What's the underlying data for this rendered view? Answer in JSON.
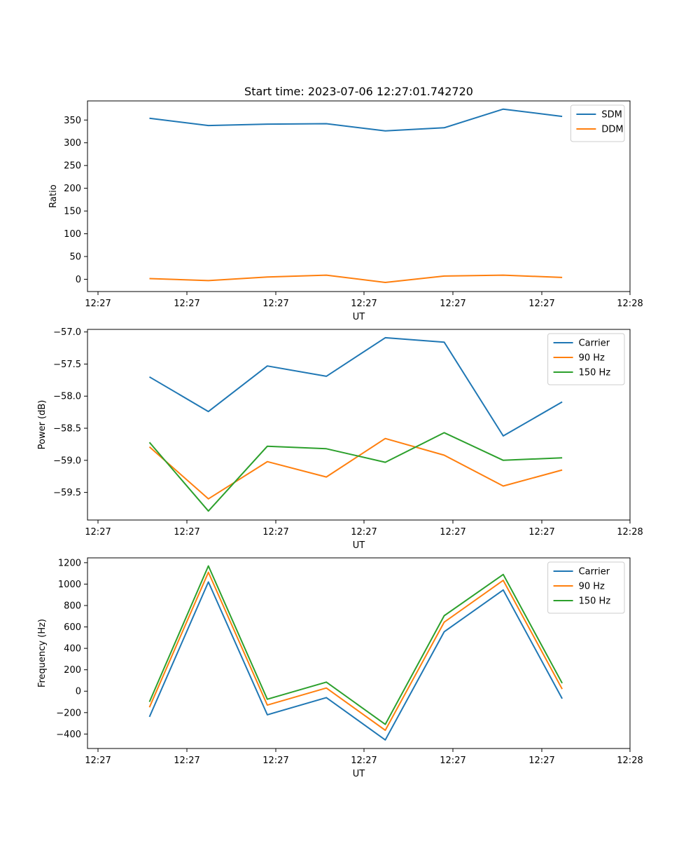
{
  "colors": {
    "blue": "#1f77b4",
    "orange": "#ff7f0e",
    "green": "#2ca02c"
  },
  "chart_data": [
    {
      "type": "line",
      "title": "Start time: 2023-07-06 12:27:01.742720",
      "xlabel": "UT",
      "ylabel": "Ratio",
      "x_tick_labels": [
        "12:27",
        "12:27",
        "12:27",
        "12:27",
        "12:27",
        "12:27",
        "12:28"
      ],
      "xlim": [
        -1.05,
        8.15
      ],
      "x": [
        0,
        1,
        2,
        3,
        4,
        5,
        6,
        7
      ],
      "ylim": [
        -27,
        392
      ],
      "yticks": [
        0,
        50,
        100,
        150,
        200,
        250,
        300,
        350
      ],
      "ytick_labels": [
        "0",
        "50",
        "100",
        "150",
        "200",
        "250",
        "300",
        "350"
      ],
      "legend": "top-right",
      "series": [
        {
          "name": "SDM",
          "color": "blue",
          "values": [
            354,
            338,
            341,
            342,
            326,
            333,
            374,
            358
          ]
        },
        {
          "name": "DDM",
          "color": "orange",
          "values": [
            1.5,
            -3,
            5,
            9,
            -7,
            7,
            9,
            4
          ]
        }
      ]
    },
    {
      "type": "line",
      "title": "",
      "xlabel": "UT",
      "ylabel": "Power (dB)",
      "x_tick_labels": [
        "12:27",
        "12:27",
        "12:27",
        "12:27",
        "12:27",
        "12:27",
        "12:28"
      ],
      "xlim": [
        -1.05,
        8.15
      ],
      "x": [
        0,
        1,
        2,
        3,
        4,
        5,
        6,
        7
      ],
      "ylim": [
        -59.93,
        -56.96
      ],
      "yticks": [
        -59.5,
        -59.0,
        -58.5,
        -58.0,
        -57.5,
        -57.0
      ],
      "ytick_labels": [
        "−59.5",
        "−59.0",
        "−58.5",
        "−58.0",
        "−57.5",
        "−57.0"
      ],
      "legend": "top-right",
      "series": [
        {
          "name": "Carrier",
          "color": "blue",
          "values": [
            -57.7,
            -58.24,
            -57.53,
            -57.69,
            -57.09,
            -57.16,
            -58.62,
            -58.09
          ]
        },
        {
          "name": "90 Hz",
          "color": "orange",
          "values": [
            -58.79,
            -59.6,
            -59.02,
            -59.26,
            -58.66,
            -58.92,
            -59.4,
            -59.15
          ]
        },
        {
          "name": "150 Hz",
          "color": "green",
          "values": [
            -58.72,
            -59.79,
            -58.78,
            -58.82,
            -59.03,
            -58.57,
            -59.0,
            -58.96
          ]
        }
      ]
    },
    {
      "type": "line",
      "title": "",
      "xlabel": "UT",
      "ylabel": "Frequency (Hz)",
      "x_tick_labels": [
        "12:27",
        "12:27",
        "12:27",
        "12:27",
        "12:27",
        "12:27",
        "12:28"
      ],
      "xlim": [
        -1.05,
        8.15
      ],
      "x": [
        0,
        1,
        2,
        3,
        4,
        5,
        6,
        7
      ],
      "ylim": [
        -535,
        1245
      ],
      "yticks": [
        -400,
        -200,
        0,
        200,
        400,
        600,
        800,
        1000,
        1200
      ],
      "ytick_labels": [
        "−400",
        "−200",
        "0",
        "200",
        "400",
        "600",
        "800",
        "1000",
        "1200"
      ],
      "legend": "top-right",
      "series": [
        {
          "name": "Carrier",
          "color": "blue",
          "values": [
            -240,
            1020,
            -220,
            -60,
            -455,
            555,
            945,
            -70
          ]
        },
        {
          "name": "90 Hz",
          "color": "orange",
          "values": [
            -150,
            1110,
            -130,
            30,
            -365,
            645,
            1035,
            20
          ]
        },
        {
          "name": "150 Hz",
          "color": "green",
          "values": [
            -100,
            1170,
            -75,
            85,
            -310,
            705,
            1090,
            75
          ]
        }
      ]
    }
  ]
}
